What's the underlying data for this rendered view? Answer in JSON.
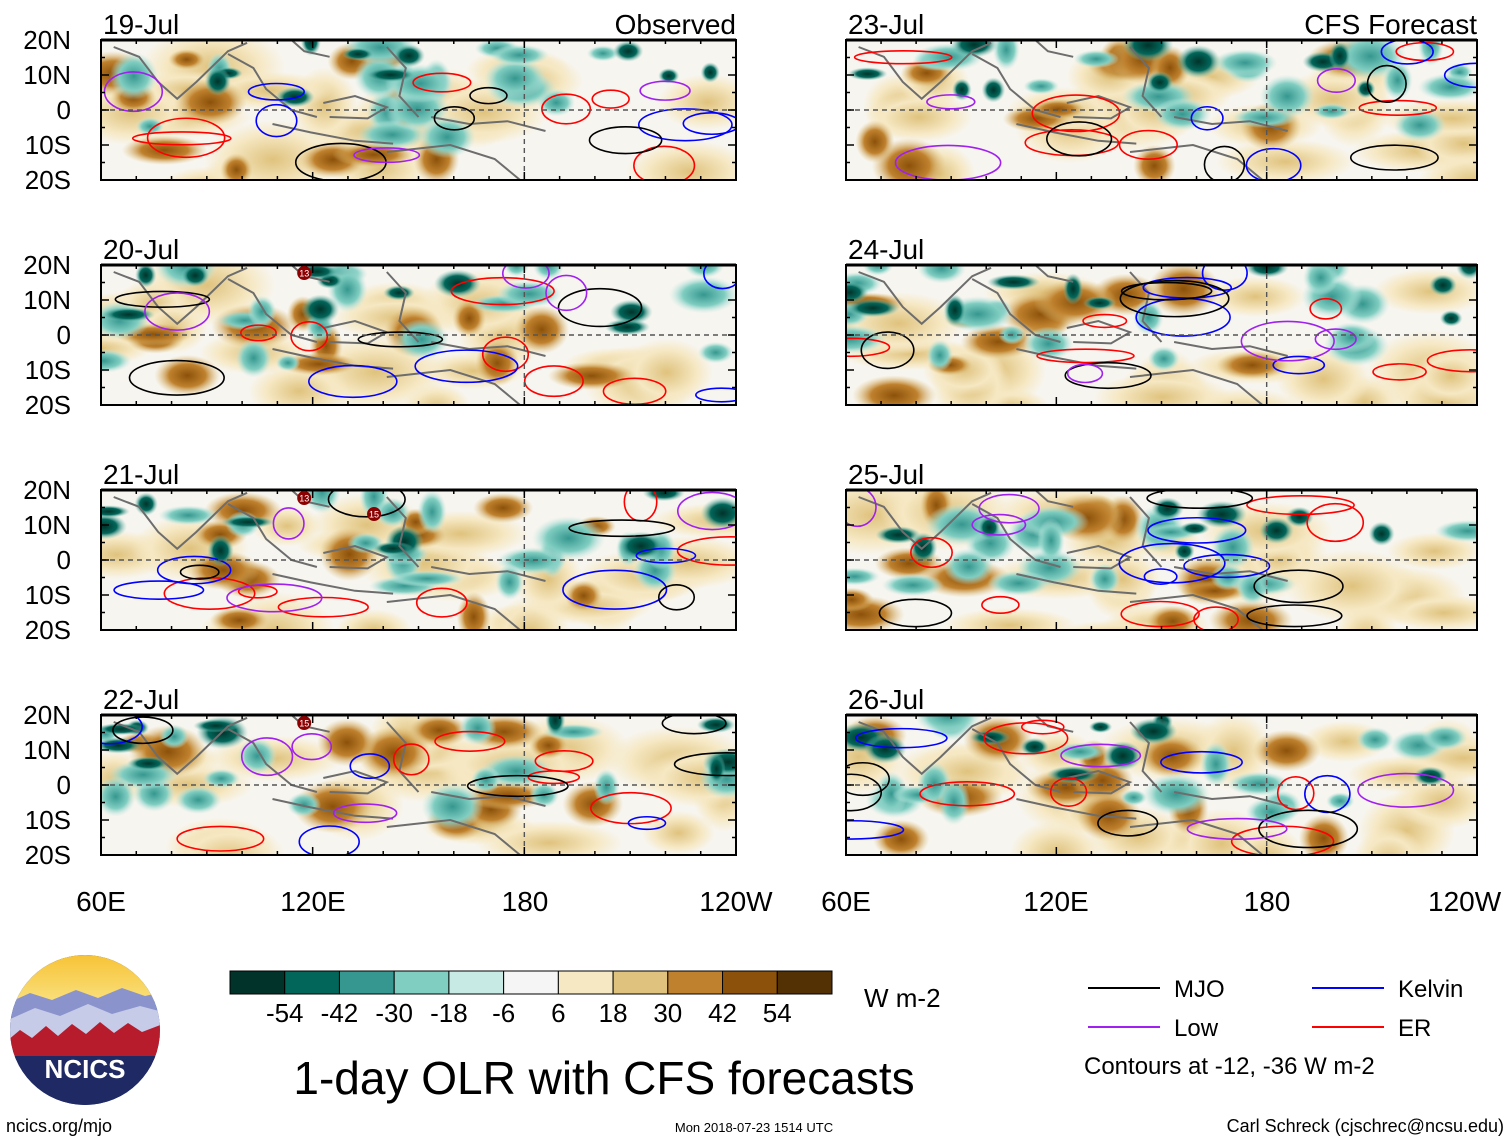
{
  "chart_data": {
    "type": "heatmap",
    "title": "1-day OLR with CFS forecasts",
    "units": "W m-2",
    "columns": [
      {
        "label": "Observed",
        "dates": [
          "19-Jul",
          "20-Jul",
          "21-Jul",
          "22-Jul"
        ]
      },
      {
        "label": "CFS Forecast",
        "dates": [
          "23-Jul",
          "24-Jul",
          "25-Jul",
          "26-Jul"
        ]
      }
    ],
    "lat_ticks": [
      "20N",
      "10N",
      "0",
      "10S",
      "20S"
    ],
    "lon_ticks_left": [
      "60E",
      "120E",
      "180",
      "120W"
    ],
    "lon_ticks_right": [
      "60E",
      "120E",
      "180",
      "120W"
    ],
    "colorbar": {
      "ticks": [
        "-54",
        "-42",
        "-30",
        "-18",
        "-6",
        "6",
        "18",
        "30",
        "42",
        "54"
      ],
      "colors": [
        "#01332a",
        "#02665a",
        "#35978f",
        "#80cdc1",
        "#c7eae5",
        "#f5f5f5",
        "#f6e8c3",
        "#dfc27d",
        "#bf812d",
        "#8c510a",
        "#543005"
      ]
    },
    "legend": [
      {
        "label": "MJO",
        "color": "#000000"
      },
      {
        "label": "Kelvin",
        "color": "#0000ff"
      },
      {
        "label": "Low",
        "color": "#a020f0"
      },
      {
        "label": "ER",
        "color": "#ff0000"
      }
    ],
    "contour_note": "Contours at -12, -36 W m-2",
    "storm_markers": [
      {
        "date": "20-Jul",
        "label": "13"
      },
      {
        "date": "21-Jul",
        "label": "13"
      },
      {
        "date": "21-Jul",
        "label": "15"
      },
      {
        "date": "22-Jul",
        "label": "15"
      }
    ]
  },
  "logo": {
    "text": "NCICS"
  },
  "footer": {
    "left": "ncics.org/mjo",
    "center": "Mon 2018-07-23 1514 UTC",
    "right": "Carl Schreck (cjschrec@ncsu.edu)"
  }
}
